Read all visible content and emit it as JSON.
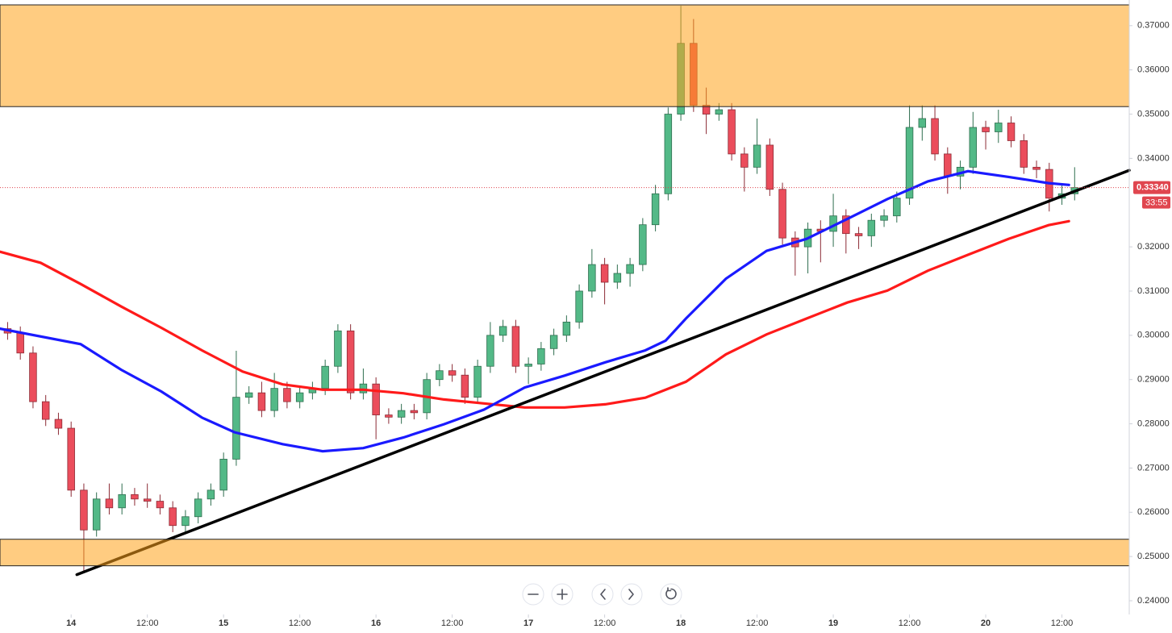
{
  "chart_data": {
    "type": "candlestick",
    "xlim": [
      -11.2,
      166.6
    ],
    "ylim": [
      0.2369,
      0.3758
    ],
    "xticks": [
      {
        "value": 0,
        "label": "14"
      },
      {
        "value": 12,
        "label": "12:00"
      },
      {
        "value": 24,
        "label": "15"
      },
      {
        "value": 36,
        "label": "12:00"
      },
      {
        "value": 48,
        "label": "16"
      },
      {
        "value": 60,
        "label": "12:00"
      },
      {
        "value": 72,
        "label": "17"
      },
      {
        "value": 84,
        "label": "12:00"
      },
      {
        "value": 96,
        "label": "18"
      },
      {
        "value": 108,
        "label": "12:00"
      },
      {
        "value": 120,
        "label": "19"
      },
      {
        "value": 132,
        "label": "12:00"
      },
      {
        "value": 144,
        "label": "20"
      },
      {
        "value": 156,
        "label": "12:00"
      }
    ],
    "yticks": [
      {
        "value": 0.37,
        "label": "0.37000"
      },
      {
        "value": 0.36,
        "label": "0.36000"
      },
      {
        "value": 0.35,
        "label": "0.35000"
      },
      {
        "value": 0.34,
        "label": "0.34000"
      },
      {
        "value": 0.32,
        "label": "0.32000"
      },
      {
        "value": 0.31,
        "label": "0.31000"
      },
      {
        "value": 0.3,
        "label": "0.30000"
      },
      {
        "value": 0.29,
        "label": "0.29000"
      },
      {
        "value": 0.28,
        "label": "0.28000"
      },
      {
        "value": 0.27,
        "label": "0.27000"
      },
      {
        "value": 0.26,
        "label": "0.26000"
      },
      {
        "value": 0.25,
        "label": "0.25000"
      },
      {
        "value": 0.24,
        "label": "0.24000"
      }
    ],
    "up_color": "#53b987",
    "down_color": "#eb4d5c",
    "x": [
      -10,
      -8,
      -6,
      -4,
      -2,
      0,
      2,
      4,
      6,
      8,
      10,
      12,
      14,
      16,
      18,
      20,
      22,
      24,
      26,
      28,
      30,
      32,
      34,
      36,
      38,
      40,
      42,
      44,
      46,
      48,
      50,
      52,
      54,
      56,
      58,
      60,
      62,
      64,
      66,
      68,
      70,
      72,
      74,
      76,
      78,
      80,
      82,
      84,
      86,
      88,
      90,
      92,
      94,
      96,
      98,
      100,
      102,
      104,
      106,
      108,
      110,
      112,
      114,
      116,
      118,
      120,
      122,
      124,
      126,
      128,
      130,
      132,
      134,
      136,
      138,
      140,
      142,
      144,
      146,
      148,
      150,
      152,
      154,
      156,
      158
    ],
    "open": [
      0.3015,
      0.3005,
      0.296,
      0.285,
      0.281,
      0.279,
      0.265,
      0.256,
      0.263,
      0.261,
      0.264,
      0.263,
      0.2625,
      0.261,
      0.257,
      0.259,
      0.263,
      0.265,
      0.272,
      0.286,
      0.287,
      0.283,
      0.288,
      0.285,
      0.287,
      0.288,
      0.293,
      0.301,
      0.287,
      0.289,
      0.282,
      0.2815,
      0.283,
      0.2825,
      0.29,
      0.292,
      0.291,
      0.286,
      0.293,
      0.3,
      0.302,
      0.293,
      0.2935,
      0.297,
      0.3,
      0.303,
      0.31,
      0.316,
      0.312,
      0.314,
      0.316,
      0.325,
      0.332,
      0.35,
      0.366,
      0.352,
      0.35,
      0.351,
      0.341,
      0.338,
      0.343,
      0.333,
      0.322,
      0.32,
      0.324,
      0.3235,
      0.327,
      0.323,
      0.3225,
      0.326,
      0.327,
      0.331,
      0.347,
      0.349,
      0.341,
      0.336,
      0.338,
      0.347,
      0.346,
      0.348,
      0.344,
      0.338,
      0.3375,
      0.331,
      0.332
    ],
    "high": [
      0.303,
      0.302,
      0.2975,
      0.2865,
      0.2825,
      0.2805,
      0.2665,
      0.2645,
      0.2665,
      0.2665,
      0.2655,
      0.2665,
      0.264,
      0.2625,
      0.2605,
      0.2645,
      0.2665,
      0.2735,
      0.2965,
      0.2885,
      0.2895,
      0.2915,
      0.2895,
      0.2885,
      0.2895,
      0.2945,
      0.3025,
      0.3025,
      0.2925,
      0.2905,
      0.2835,
      0.2845,
      0.2845,
      0.2915,
      0.2935,
      0.2935,
      0.2925,
      0.2945,
      0.303,
      0.3035,
      0.3035,
      0.295,
      0.2985,
      0.3015,
      0.3045,
      0.3115,
      0.3195,
      0.3175,
      0.316,
      0.3175,
      0.3265,
      0.334,
      0.3515,
      0.3745,
      0.3715,
      0.356,
      0.3525,
      0.3525,
      0.3425,
      0.349,
      0.3445,
      0.3345,
      0.3235,
      0.3255,
      0.326,
      0.332,
      0.3285,
      0.3245,
      0.3275,
      0.3285,
      0.3325,
      0.352,
      0.352,
      0.352,
      0.3425,
      0.3395,
      0.3505,
      0.3485,
      0.351,
      0.3495,
      0.3455,
      0.3395,
      0.339,
      0.334,
      0.338
    ],
    "low": [
      0.299,
      0.2945,
      0.2835,
      0.2795,
      0.2775,
      0.2635,
      0.2463,
      0.2545,
      0.2595,
      0.2595,
      0.2615,
      0.261,
      0.2595,
      0.2555,
      0.2555,
      0.2575,
      0.2615,
      0.2635,
      0.2705,
      0.2845,
      0.2815,
      0.2815,
      0.2835,
      0.2835,
      0.2855,
      0.2865,
      0.2915,
      0.2855,
      0.2855,
      0.2765,
      0.28,
      0.28,
      0.281,
      0.281,
      0.2885,
      0.2895,
      0.2845,
      0.2845,
      0.2915,
      0.2985,
      0.2915,
      0.289,
      0.292,
      0.2955,
      0.2985,
      0.3015,
      0.3085,
      0.307,
      0.3105,
      0.311,
      0.3145,
      0.3235,
      0.3305,
      0.3485,
      0.3505,
      0.3455,
      0.3485,
      0.3395,
      0.3325,
      0.3365,
      0.3315,
      0.3205,
      0.3135,
      0.314,
      0.3165,
      0.32,
      0.3185,
      0.3195,
      0.32,
      0.3245,
      0.3255,
      0.3295,
      0.344,
      0.3395,
      0.332,
      0.333,
      0.3365,
      0.342,
      0.3435,
      0.3425,
      0.3365,
      0.3355,
      0.328,
      0.3295,
      0.3305
    ],
    "close": [
      0.3005,
      0.296,
      0.285,
      0.281,
      0.279,
      0.265,
      0.256,
      0.263,
      0.261,
      0.264,
      0.263,
      0.2625,
      0.261,
      0.257,
      0.259,
      0.263,
      0.265,
      0.272,
      0.286,
      0.287,
      0.283,
      0.288,
      0.285,
      0.287,
      0.288,
      0.293,
      0.301,
      0.287,
      0.289,
      0.282,
      0.2815,
      0.283,
      0.2825,
      0.29,
      0.292,
      0.291,
      0.286,
      0.293,
      0.3,
      0.302,
      0.293,
      0.2935,
      0.297,
      0.3,
      0.303,
      0.31,
      0.316,
      0.312,
      0.314,
      0.316,
      0.325,
      0.332,
      0.35,
      0.366,
      0.352,
      0.35,
      0.351,
      0.341,
      0.338,
      0.343,
      0.333,
      0.322,
      0.32,
      0.324,
      0.3235,
      0.327,
      0.323,
      0.3225,
      0.326,
      0.327,
      0.331,
      0.347,
      0.349,
      0.341,
      0.336,
      0.338,
      0.347,
      0.346,
      0.348,
      0.344,
      0.338,
      0.3375,
      0.331,
      0.332,
      0.3334
    ],
    "lines": [
      {
        "color": "#ff1a1a",
        "x": [
          -11.2,
          -4.8,
          1.5,
          7.9,
          14.2,
          20.6,
          27,
          33.3,
          39.6,
          46,
          52.3,
          58.7,
          65,
          71.4,
          77.7,
          84.1,
          90.4,
          96.8,
          103.1,
          109.5,
          115.8,
          122.2,
          128.5,
          134.9,
          141.2,
          147.6,
          153.9,
          157.1
        ],
        "values": [
          0.3189,
          0.3164,
          0.3116,
          0.3065,
          0.3017,
          0.2966,
          0.2918,
          0.2889,
          0.2877,
          0.2877,
          0.2869,
          0.2855,
          0.2846,
          0.2837,
          0.2837,
          0.2844,
          0.2859,
          0.2895,
          0.2957,
          0.3002,
          0.3038,
          0.3074,
          0.3101,
          0.3146,
          0.3182,
          0.3218,
          0.3249,
          0.3258
        ]
      },
      {
        "color": "#1a1aff",
        "x": [
          -11.2,
          1.5,
          7.9,
          14.2,
          20.6,
          25.7,
          33.3,
          39.6,
          46,
          52.3,
          58.7,
          65,
          71.4,
          77.7,
          84.1,
          90.4,
          93.6,
          96.8,
          103.1,
          109.5,
          115.8,
          122.2,
          128.5,
          134.9,
          141.2,
          147.6,
          153.9,
          157.1
        ],
        "values": [
          0.3015,
          0.298,
          0.2922,
          0.2873,
          0.2814,
          0.2781,
          0.2754,
          0.2738,
          0.2745,
          0.2769,
          0.2799,
          0.2832,
          0.2882,
          0.2909,
          0.2939,
          0.2966,
          0.2988,
          0.3038,
          0.3128,
          0.3191,
          0.3218,
          0.3263,
          0.3308,
          0.3348,
          0.3371,
          0.3358,
          0.3344,
          0.334
        ]
      },
      {
        "color": "#000000",
        "x": [
          0.9,
          166.6
        ],
        "values": [
          0.2459,
          0.3373
        ]
      }
    ],
    "zones": [
      {
        "from": 0.3517,
        "to": 0.3747
      },
      {
        "from": 0.2479,
        "to": 0.2539
      }
    ],
    "zone_color": "#ffa31a",
    "last_price": {
      "value": 0.3334,
      "label": "0.33340"
    },
    "countdown": "33:55"
  }
}
